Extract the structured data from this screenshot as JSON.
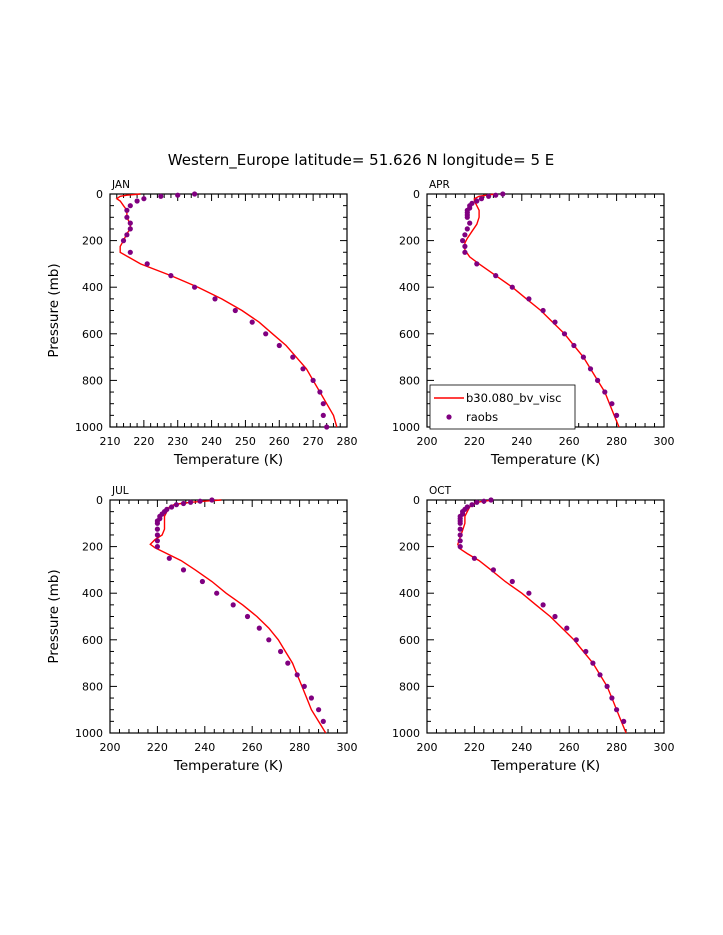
{
  "page": {
    "title": "Western_Europe  latitude= 51.626 N longitude= 5 E"
  },
  "chart_data": [
    {
      "type": "line",
      "panel_label": "JAN",
      "xlabel": "Temperature (K)",
      "ylabel": "Pressure (mb)",
      "xlim": [
        210,
        280
      ],
      "ylim": [
        1000,
        0
      ],
      "xticks": [
        210,
        220,
        230,
        240,
        250,
        260,
        270,
        280
      ],
      "yticks": [
        0,
        200,
        400,
        600,
        800,
        1000
      ],
      "series": [
        {
          "name": "b30.080_bv_visc",
          "style": "line",
          "color": "#ff0000",
          "points": [
            [
              219,
              0
            ],
            [
              215,
              5
            ],
            [
              213,
              10
            ],
            [
              212,
              20
            ],
            [
              213,
              30
            ],
            [
              214,
              50
            ],
            [
              215,
              70
            ],
            [
              215,
              100
            ],
            [
              216,
              130
            ],
            [
              216,
              150
            ],
            [
              215,
              170
            ],
            [
              214,
              200
            ],
            [
              213,
              225
            ],
            [
              213,
              250
            ],
            [
              219,
              300
            ],
            [
              228,
              350
            ],
            [
              236,
              400
            ],
            [
              243,
              450
            ],
            [
              249,
              500
            ],
            [
              254,
              550
            ],
            [
              258,
              600
            ],
            [
              262,
              650
            ],
            [
              265,
              700
            ],
            [
              268,
              750
            ],
            [
              270,
              800
            ],
            [
              272,
              850
            ],
            [
              274,
              900
            ],
            [
              276,
              950
            ],
            [
              277,
              1000
            ]
          ]
        },
        {
          "name": "raobs",
          "style": "markers",
          "color": "#800080",
          "points": [
            [
              235,
              0
            ],
            [
              230,
              5
            ],
            [
              225,
              10
            ],
            [
              220,
              20
            ],
            [
              218,
              30
            ],
            [
              216,
              50
            ],
            [
              215,
              70
            ],
            [
              215,
              100
            ],
            [
              216,
              125
            ],
            [
              216,
              150
            ],
            [
              215,
              175
            ],
            [
              214,
              200
            ],
            [
              216,
              250
            ],
            [
              221,
              300
            ],
            [
              228,
              350
            ],
            [
              235,
              400
            ],
            [
              241,
              450
            ],
            [
              247,
              500
            ],
            [
              252,
              550
            ],
            [
              256,
              600
            ],
            [
              260,
              650
            ],
            [
              264,
              700
            ],
            [
              267,
              750
            ],
            [
              270,
              800
            ],
            [
              272,
              850
            ],
            [
              273,
              900
            ],
            [
              273,
              950
            ],
            [
              274,
              1000
            ]
          ]
        }
      ]
    },
    {
      "type": "line",
      "panel_label": "APR",
      "xlabel": "Temperature (K)",
      "ylabel": "",
      "xlim": [
        200,
        300
      ],
      "ylim": [
        1000,
        0
      ],
      "xticks": [
        200,
        220,
        240,
        260,
        280,
        300
      ],
      "yticks": [
        0,
        200,
        400,
        600,
        800,
        1000
      ],
      "legend": {
        "placement": "lower-left",
        "entries": [
          "b30.080_bv_visc",
          "raobs"
        ]
      },
      "series": [
        {
          "name": "b30.080_bv_visc",
          "style": "line",
          "color": "#ff0000",
          "points": [
            [
              229,
              0
            ],
            [
              225,
              5
            ],
            [
              222,
              10
            ],
            [
              220,
              20
            ],
            [
              220,
              30
            ],
            [
              221,
              50
            ],
            [
              222,
              70
            ],
            [
              222,
              100
            ],
            [
              221,
              130
            ],
            [
              219,
              160
            ],
            [
              217,
              190
            ],
            [
              216,
              210
            ],
            [
              216,
              240
            ],
            [
              218,
              270
            ],
            [
              222,
              300
            ],
            [
              229,
              350
            ],
            [
              236,
              400
            ],
            [
              242,
              450
            ],
            [
              248,
              500
            ],
            [
              253,
              550
            ],
            [
              258,
              600
            ],
            [
              262,
              650
            ],
            [
              266,
              700
            ],
            [
              269,
              750
            ],
            [
              272,
              800
            ],
            [
              275,
              850
            ],
            [
              277,
              900
            ],
            [
              279,
              950
            ],
            [
              281,
              1000
            ]
          ]
        },
        {
          "name": "raobs",
          "style": "markers",
          "color": "#800080",
          "points": [
            [
              232,
              0
            ],
            [
              229,
              5
            ],
            [
              226,
              10
            ],
            [
              223,
              20
            ],
            [
              221,
              30
            ],
            [
              219,
              40
            ],
            [
              218,
              50
            ],
            [
              218,
              60
            ],
            [
              217,
              70
            ],
            [
              217,
              80
            ],
            [
              217,
              90
            ],
            [
              217,
              100
            ],
            [
              218,
              125
            ],
            [
              217,
              150
            ],
            [
              216,
              175
            ],
            [
              215,
              200
            ],
            [
              216,
              225
            ],
            [
              216,
              250
            ],
            [
              221,
              300
            ],
            [
              229,
              350
            ],
            [
              236,
              400
            ],
            [
              243,
              450
            ],
            [
              249,
              500
            ],
            [
              254,
              550
            ],
            [
              258,
              600
            ],
            [
              262,
              650
            ],
            [
              266,
              700
            ],
            [
              269,
              750
            ],
            [
              272,
              800
            ],
            [
              275,
              850
            ],
            [
              278,
              900
            ],
            [
              280,
              950
            ]
          ]
        }
      ]
    },
    {
      "type": "line",
      "panel_label": "JUL",
      "xlabel": "Temperature (K)",
      "ylabel": "Pressure (mb)",
      "xlim": [
        200,
        300
      ],
      "ylim": [
        1000,
        0
      ],
      "xticks": [
        200,
        220,
        240,
        260,
        280,
        300
      ],
      "yticks": [
        0,
        200,
        400,
        600,
        800,
        1000
      ],
      "series": [
        {
          "name": "b30.080_bv_visc",
          "style": "line",
          "color": "#ff0000",
          "points": [
            [
              247,
              0
            ],
            [
              240,
              5
            ],
            [
              234,
              10
            ],
            [
              230,
              15
            ],
            [
              227,
              20
            ],
            [
              225,
              30
            ],
            [
              224,
              50
            ],
            [
              223,
              70
            ],
            [
              223,
              100
            ],
            [
              223,
              125
            ],
            [
              222,
              150
            ],
            [
              219,
              170
            ],
            [
              217,
              190
            ],
            [
              219,
              205
            ],
            [
              222,
              220
            ],
            [
              230,
              260
            ],
            [
              236,
              300
            ],
            [
              243,
              350
            ],
            [
              249,
              400
            ],
            [
              256,
              450
            ],
            [
              262,
              500
            ],
            [
              267,
              550
            ],
            [
              271,
              600
            ],
            [
              274,
              650
            ],
            [
              277,
              700
            ],
            [
              279,
              750
            ],
            [
              281,
              800
            ],
            [
              283,
              850
            ],
            [
              285,
              900
            ],
            [
              288,
              950
            ],
            [
              291,
              1000
            ]
          ]
        },
        {
          "name": "raobs",
          "style": "markers",
          "color": "#800080",
          "points": [
            [
              243,
              0
            ],
            [
              238,
              5
            ],
            [
              234,
              10
            ],
            [
              231,
              15
            ],
            [
              228,
              20
            ],
            [
              226,
              30
            ],
            [
              224,
              40
            ],
            [
              223,
              50
            ],
            [
              222,
              60
            ],
            [
              221,
              70
            ],
            [
              221,
              80
            ],
            [
              220,
              90
            ],
            [
              220,
              100
            ],
            [
              220,
              125
            ],
            [
              220,
              150
            ],
            [
              220,
              175
            ],
            [
              220,
              200
            ],
            [
              225,
              250
            ],
            [
              231,
              300
            ],
            [
              239,
              350
            ],
            [
              245,
              400
            ],
            [
              252,
              450
            ],
            [
              258,
              500
            ],
            [
              263,
              550
            ],
            [
              267,
              600
            ],
            [
              272,
              650
            ],
            [
              275,
              700
            ],
            [
              279,
              750
            ],
            [
              282,
              800
            ],
            [
              285,
              850
            ],
            [
              288,
              900
            ],
            [
              290,
              950
            ]
          ]
        }
      ]
    },
    {
      "type": "line",
      "panel_label": "OCT",
      "xlabel": "Temperature (K)",
      "ylabel": "",
      "xlim": [
        200,
        300
      ],
      "ylim": [
        1000,
        0
      ],
      "xticks": [
        200,
        220,
        240,
        260,
        280,
        300
      ],
      "yticks": [
        0,
        200,
        400,
        600,
        800,
        1000
      ],
      "series": [
        {
          "name": "b30.080_bv_visc",
          "style": "line",
          "color": "#ff0000",
          "points": [
            [
              228,
              0
            ],
            [
              224,
              5
            ],
            [
              221,
              10
            ],
            [
              219,
              20
            ],
            [
              218,
              30
            ],
            [
              217,
              50
            ],
            [
              216,
              70
            ],
            [
              216,
              100
            ],
            [
              215,
              130
            ],
            [
              214,
              160
            ],
            [
              213,
              190
            ],
            [
              214,
              210
            ],
            [
              217,
              230
            ],
            [
              222,
              260
            ],
            [
              227,
              300
            ],
            [
              233,
              350
            ],
            [
              240,
              400
            ],
            [
              246,
              450
            ],
            [
              252,
              500
            ],
            [
              257,
              550
            ],
            [
              262,
              600
            ],
            [
              266,
              650
            ],
            [
              270,
              700
            ],
            [
              273,
              750
            ],
            [
              276,
              800
            ],
            [
              278,
              850
            ],
            [
              280,
              900
            ],
            [
              282,
              950
            ],
            [
              284,
              1000
            ]
          ]
        },
        {
          "name": "raobs",
          "style": "markers",
          "color": "#800080",
          "points": [
            [
              227,
              0
            ],
            [
              224,
              5
            ],
            [
              221,
              10
            ],
            [
              219,
              20
            ],
            [
              217,
              30
            ],
            [
              216,
              40
            ],
            [
              215,
              50
            ],
            [
              215,
              60
            ],
            [
              214,
              70
            ],
            [
              214,
              80
            ],
            [
              214,
              90
            ],
            [
              214,
              100
            ],
            [
              214,
              125
            ],
            [
              214,
              150
            ],
            [
              214,
              175
            ],
            [
              214,
              200
            ],
            [
              220,
              250
            ],
            [
              228,
              300
            ],
            [
              236,
              350
            ],
            [
              243,
              400
            ],
            [
              249,
              450
            ],
            [
              254,
              500
            ],
            [
              259,
              550
            ],
            [
              263,
              600
            ],
            [
              267,
              650
            ],
            [
              270,
              700
            ],
            [
              273,
              750
            ],
            [
              276,
              800
            ],
            [
              278,
              850
            ],
            [
              280,
              900
            ],
            [
              283,
              950
            ]
          ]
        }
      ]
    }
  ]
}
